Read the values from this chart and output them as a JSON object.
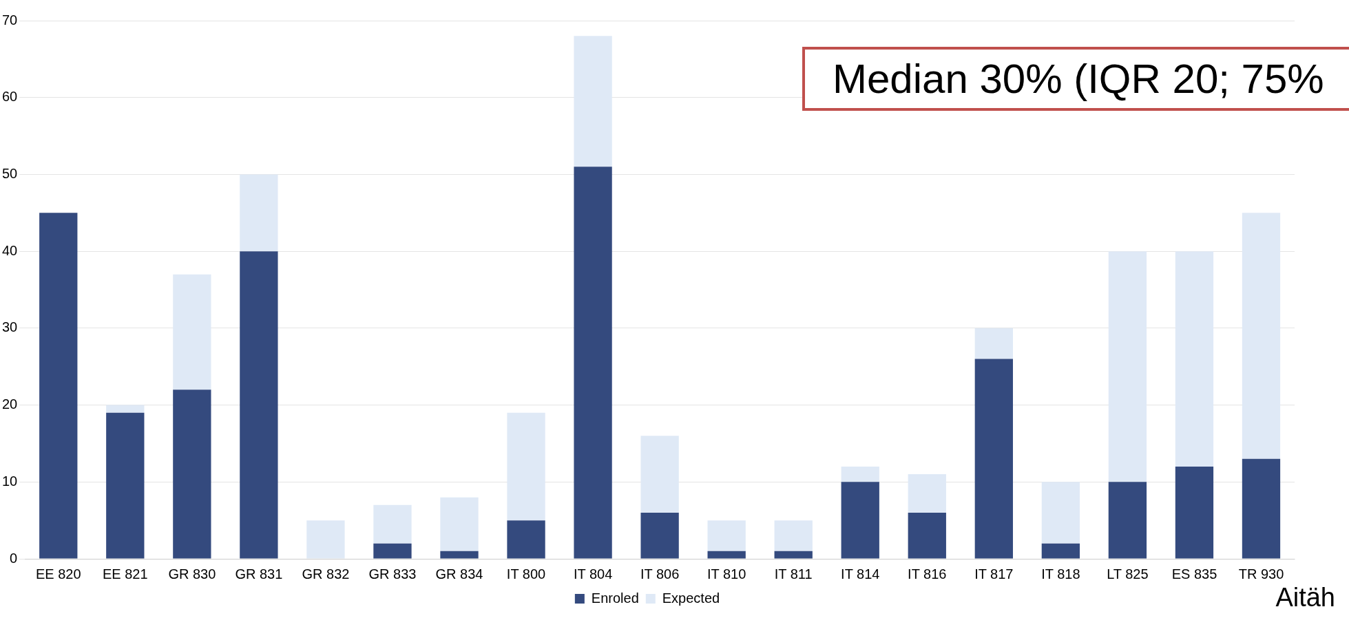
{
  "chart_data": {
    "type": "bar",
    "stacked": true,
    "categories": [
      "EE 820",
      "EE 821",
      "GR 830",
      "GR 831",
      "GR 832",
      "GR 833",
      "GR 834",
      "IT 800",
      "IT 804",
      "IT 806",
      "IT 810",
      "IT 811",
      "IT 814",
      "IT 816",
      "IT 817",
      "IT 818",
      "LT 825",
      "ES 835",
      "TR 930"
    ],
    "series": [
      {
        "name": "Enroled",
        "color": "#344a7e",
        "values": [
          45,
          19,
          22,
          40,
          0,
          2,
          1,
          5,
          51,
          6,
          1,
          1,
          10,
          6,
          26,
          2,
          10,
          12,
          13
        ]
      },
      {
        "name": "Expected",
        "color": "#dfe9f6",
        "values": [
          0,
          1,
          15,
          10,
          5,
          5,
          7,
          14,
          17,
          10,
          4,
          4,
          2,
          5,
          4,
          8,
          30,
          28,
          32
        ]
      }
    ],
    "ylim": [
      0,
      70
    ],
    "yticks": [
      0,
      10,
      20,
      30,
      40,
      50,
      60,
      70
    ],
    "grid": "y",
    "legend": "bottom",
    "annotations": [
      "Median 30% (IQR 20; 75%",
      "Aitäh"
    ]
  }
}
